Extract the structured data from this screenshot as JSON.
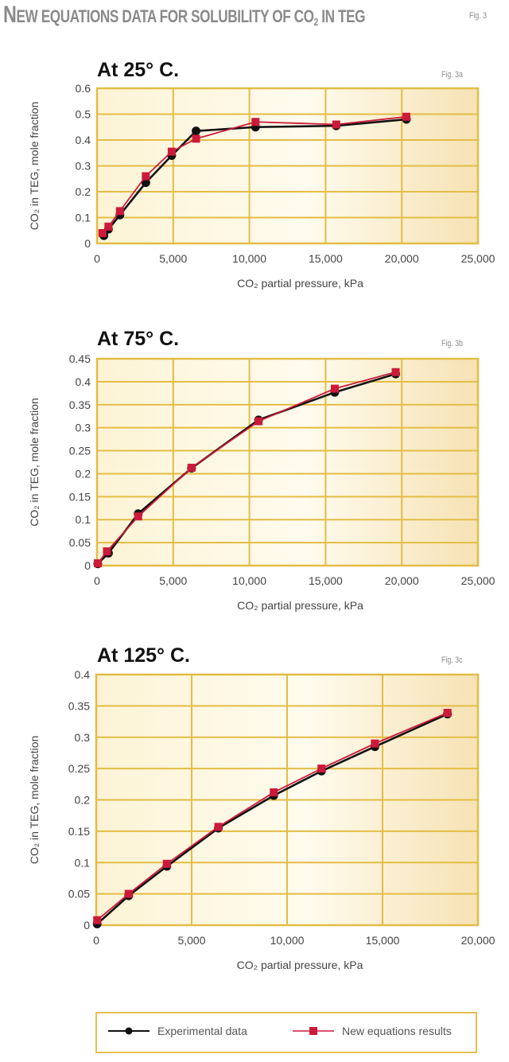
{
  "header": {
    "title_first_letter": "N",
    "title_rest": "EW EQUATIONS DATA FOR SOLUBILITY OF CO",
    "title_sub": "2",
    "title_end": " IN TEG",
    "fig_label": "Fig. 3"
  },
  "colors": {
    "plot_bg": "#fdf5dc",
    "grid": "#e3bd45",
    "experimental": "#111111",
    "new_equations": "#cc1a3a"
  },
  "charts": [
    {
      "title": "At 25° C.",
      "fig": "Fig. 3a",
      "ylabel": "CO₂ in TEG, mole fraction",
      "xlabel": "CO₂ partial pressure, kPa"
    },
    {
      "title": "At 75° C.",
      "fig": "Fig. 3b",
      "ylabel": "CO₂ in TEG, mole fraction",
      "xlabel": "CO₂ partial pressure, kPa"
    },
    {
      "title": "At 125° C.",
      "fig": "Fig. 3c",
      "ylabel": "CO₂ in TEG, mole fraction",
      "xlabel": "CO₂ partial pressure, kPa"
    }
  ],
  "legend": {
    "experimental": "Experimental data",
    "new_equations": "New equations results"
  },
  "chart_data": [
    {
      "type": "line",
      "title": "At 25° C.",
      "fig": "Fig. 3a",
      "xlabel": "CO₂ partial pressure, kPa",
      "ylabel": "CO₂ in TEG, mole fraction",
      "xlim": [
        0,
        25000
      ],
      "ylim": [
        0,
        0.6
      ],
      "xticks": [
        0,
        5000,
        10000,
        15000,
        20000,
        25000
      ],
      "xtick_labels": [
        "0",
        "5,000",
        "10,000",
        "15,000",
        "20,000",
        "25,000"
      ],
      "yticks": [
        0,
        0.1,
        0.2,
        0.3,
        0.4,
        0.5,
        0.6
      ],
      "ytick_labels": [
        "0",
        "0.1",
        "0.2",
        "0.3",
        "0.4",
        "0.5",
        "0.6"
      ],
      "grid": true,
      "legend_position": "bottom",
      "series": [
        {
          "name": "Experimental data",
          "marker": "circle",
          "color": "#111111",
          "x": [
            450,
            750,
            1500,
            3200,
            4900,
            6500,
            10400,
            15700,
            20300
          ],
          "y": [
            0.03,
            0.055,
            0.11,
            0.235,
            0.34,
            0.435,
            0.45,
            0.455,
            0.48
          ]
        },
        {
          "name": "New equations results",
          "marker": "square",
          "color": "#cc1a3a",
          "x": [
            350,
            750,
            1500,
            3200,
            4900,
            6500,
            10400,
            15700,
            20300
          ],
          "y": [
            0.04,
            0.065,
            0.125,
            0.26,
            0.355,
            0.405,
            0.47,
            0.46,
            0.49
          ]
        }
      ]
    },
    {
      "type": "line",
      "title": "At 75° C.",
      "fig": "Fig. 3b",
      "xlabel": "CO₂ partial pressure, kPa",
      "ylabel": "CO₂ in TEG, mole fraction",
      "xlim": [
        0,
        25000
      ],
      "ylim": [
        0,
        0.45
      ],
      "xticks": [
        0,
        5000,
        10000,
        15000,
        20000,
        25000
      ],
      "xtick_labels": [
        "0",
        "5,000",
        "10,000",
        "15,000",
        "20,000",
        "25,000"
      ],
      "yticks": [
        0,
        0.05,
        0.1,
        0.15,
        0.2,
        0.25,
        0.3,
        0.35,
        0.4,
        0.45
      ],
      "ytick_labels": [
        "0",
        "0.05",
        "0.1",
        "0.15",
        "0.2",
        "0.25",
        "0.3",
        "0.35",
        "0.4",
        "0.45"
      ],
      "grid": true,
      "legend_position": "bottom",
      "series": [
        {
          "name": "Experimental data",
          "marker": "circle",
          "color": "#111111",
          "x": [
            50,
            750,
            2700,
            6200,
            10600,
            15600,
            19600
          ],
          "y": [
            0.004,
            0.027,
            0.113,
            0.212,
            0.317,
            0.377,
            0.417
          ]
        },
        {
          "name": "New equations results",
          "marker": "square",
          "color": "#cc1a3a",
          "x": [
            50,
            650,
            2700,
            6200,
            10600,
            15600,
            19600
          ],
          "y": [
            0.005,
            0.031,
            0.107,
            0.213,
            0.314,
            0.385,
            0.421
          ]
        }
      ]
    },
    {
      "type": "line",
      "title": "At 125° C.",
      "fig": "Fig. 3c",
      "xlabel": "CO₂ partial pressure, kPa",
      "ylabel": "CO₂ in TEG, mole fraction",
      "xlim": [
        0,
        20000
      ],
      "ylim": [
        0,
        0.4
      ],
      "xticks": [
        0,
        5000,
        10000,
        15000,
        20000
      ],
      "xtick_labels": [
        "0",
        "5,000",
        "10,000",
        "15,000",
        "20,000"
      ],
      "yticks": [
        0,
        0.05,
        0.1,
        0.15,
        0.2,
        0.25,
        0.3,
        0.35,
        0.4
      ],
      "ytick_labels": [
        "0",
        "0.05",
        "0.1",
        "0.15",
        "0.2",
        "0.25",
        "0.3",
        "0.35",
        "0.4"
      ],
      "grid": true,
      "legend_position": "bottom",
      "series": [
        {
          "name": "Experimental data",
          "marker": "circle",
          "color": "#111111",
          "x": [
            50,
            1700,
            3700,
            6400,
            9300,
            11800,
            14600,
            18400
          ],
          "y": [
            0.002,
            0.047,
            0.094,
            0.155,
            0.207,
            0.246,
            0.285,
            0.337
          ]
        },
        {
          "name": "New equations results",
          "marker": "square",
          "color": "#cc1a3a",
          "x": [
            50,
            1700,
            3700,
            6400,
            9300,
            11800,
            14600,
            18400
          ],
          "y": [
            0.008,
            0.05,
            0.098,
            0.157,
            0.212,
            0.25,
            0.29,
            0.339
          ]
        }
      ]
    }
  ]
}
